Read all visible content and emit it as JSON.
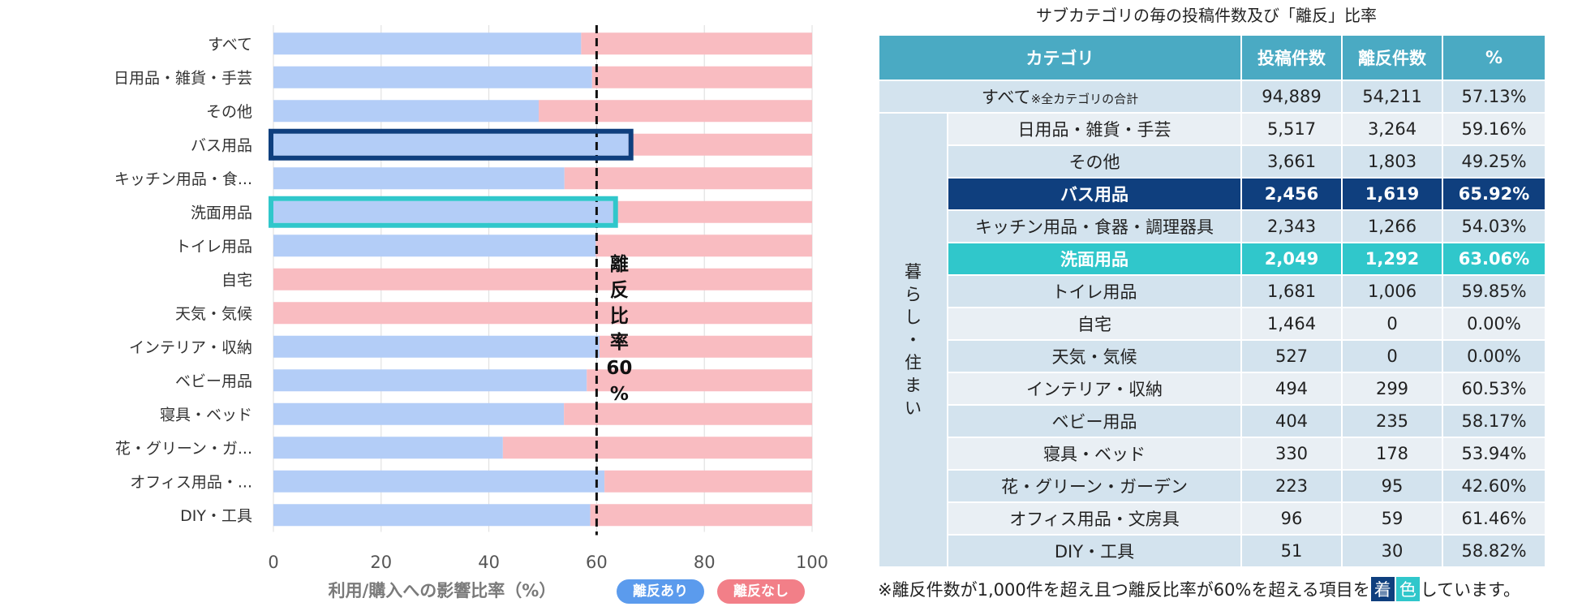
{
  "colors": {
    "churn": "#b3cdf7",
    "no_churn": "#f9bcc1",
    "navy": "#0f3f7e",
    "teal": "#30c7cb",
    "legend_churn": "#5b9bed",
    "legend_no_churn": "#f27f88",
    "header": "#4aaac3"
  },
  "chart_data": {
    "type": "bar",
    "orientation": "horizontal",
    "stacked": true,
    "categories": [
      "すべて",
      "日用品・雑貨・手芸",
      "その他",
      "バス用品",
      "キッチン用品・食...",
      "洗面用品",
      "トイレ用品",
      "自宅",
      "天気・気候",
      "インテリア・収納",
      "ベビー用品",
      "寝具・ベッド",
      "花・グリーン・ガ...",
      "オフィス用品・...",
      "DIY・工具"
    ],
    "series": [
      {
        "name": "離反あり",
        "values": [
          57.13,
          59.16,
          49.25,
          65.92,
          54.03,
          63.06,
          59.85,
          0.0,
          0.0,
          60.53,
          58.17,
          53.94,
          42.6,
          61.46,
          58.82
        ]
      },
      {
        "name": "離反なし",
        "values": [
          42.87,
          40.84,
          50.75,
          34.08,
          45.97,
          36.94,
          40.15,
          100.0,
          100.0,
          39.47,
          41.83,
          46.06,
          57.4,
          38.54,
          41.18
        ]
      }
    ],
    "xlabel": "利用/購入への影響比率（%）",
    "xlim": [
      0,
      100
    ],
    "xticks": [
      0,
      20,
      40,
      60,
      80,
      100
    ],
    "reference_line": {
      "x": 60,
      "label": "離反比率60%",
      "label_chars": [
        "離",
        "反",
        "比",
        "率",
        "60",
        "%"
      ]
    },
    "highlight_navy": "バス用品",
    "highlight_teal": "洗面用品",
    "legend": [
      "離反あり",
      "離反なし"
    ]
  },
  "table": {
    "title": "サブカテゴリの毎の投稿件数及び「離反」比率",
    "headers": [
      "カテゴリ",
      "投稿件数",
      "離反件数",
      "%"
    ],
    "all_row": {
      "label": "すべて",
      "sub": "※全カテゴリの合計",
      "posts": "94,889",
      "churn": "54,211",
      "pct": "57.13%"
    },
    "group_label": [
      "暮",
      "ら",
      "し",
      "・",
      "住",
      "ま",
      "い"
    ],
    "rows": [
      {
        "name": "日用品・雑貨・手芸",
        "posts": "5,517",
        "churn": "3,264",
        "pct": "59.16%",
        "hl": ""
      },
      {
        "name": "その他",
        "posts": "3,661",
        "churn": "1,803",
        "pct": "49.25%",
        "hl": ""
      },
      {
        "name": "バス用品",
        "posts": "2,456",
        "churn": "1,619",
        "pct": "65.92%",
        "hl": "navy"
      },
      {
        "name": "キッチン用品・食器・調理器具",
        "posts": "2,343",
        "churn": "1,266",
        "pct": "54.03%",
        "hl": ""
      },
      {
        "name": "洗面用品",
        "posts": "2,049",
        "churn": "1,292",
        "pct": "63.06%",
        "hl": "teal"
      },
      {
        "name": "トイレ用品",
        "posts": "1,681",
        "churn": "1,006",
        "pct": "59.85%",
        "hl": ""
      },
      {
        "name": "自宅",
        "posts": "1,464",
        "churn": "0",
        "pct": "0.00%",
        "hl": ""
      },
      {
        "name": "天気・気候",
        "posts": "527",
        "churn": "0",
        "pct": "0.00%",
        "hl": ""
      },
      {
        "name": "インテリア・収納",
        "posts": "494",
        "churn": "299",
        "pct": "60.53%",
        "hl": ""
      },
      {
        "name": "ベビー用品",
        "posts": "404",
        "churn": "235",
        "pct": "58.17%",
        "hl": ""
      },
      {
        "name": "寝具・ベッド",
        "posts": "330",
        "churn": "178",
        "pct": "53.94%",
        "hl": ""
      },
      {
        "name": "花・グリーン・ガーデン",
        "posts": "223",
        "churn": "95",
        "pct": "42.60%",
        "hl": ""
      },
      {
        "name": "オフィス用品・文房具",
        "posts": "96",
        "churn": "59",
        "pct": "61.46%",
        "hl": ""
      },
      {
        "name": "DIY・工具",
        "posts": "51",
        "churn": "30",
        "pct": "58.82%",
        "hl": ""
      }
    ]
  },
  "footnote": {
    "before": "※離反件数が1,000件を超え且つ離反比率が60%を超える項目を",
    "chip1": "着",
    "chip2": "色",
    "after": "しています。"
  }
}
